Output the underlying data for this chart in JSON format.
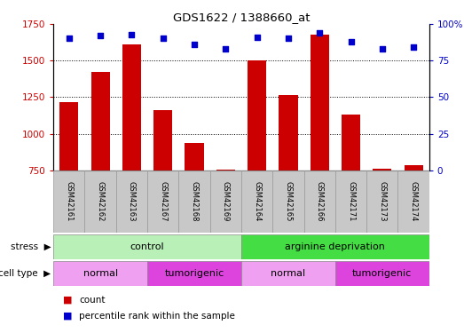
{
  "title": "GDS1622 / 1388660_at",
  "samples": [
    "GSM42161",
    "GSM42162",
    "GSM42163",
    "GSM42167",
    "GSM42168",
    "GSM42169",
    "GSM42164",
    "GSM42165",
    "GSM42166",
    "GSM42171",
    "GSM42173",
    "GSM42174"
  ],
  "counts": [
    1215,
    1420,
    1610,
    1165,
    940,
    755,
    1500,
    1265,
    1680,
    1130,
    760,
    785
  ],
  "percentile_ranks": [
    90,
    92,
    93,
    90,
    86,
    83,
    91,
    90,
    94,
    88,
    83,
    84
  ],
  "ylim_left": [
    750,
    1750
  ],
  "ylim_right": [
    0,
    100
  ],
  "yticks_left": [
    750,
    1000,
    1250,
    1500,
    1750
  ],
  "yticks_right": [
    0,
    25,
    50,
    75,
    100
  ],
  "bar_color": "#cc0000",
  "dot_color": "#0000cc",
  "stress_groups": [
    {
      "label": "control",
      "start": 0,
      "end": 6,
      "color": "#b8f0b8"
    },
    {
      "label": "arginine deprivation",
      "start": 6,
      "end": 12,
      "color": "#44dd44"
    }
  ],
  "cell_type_groups": [
    {
      "label": "normal",
      "start": 0,
      "end": 3,
      "color": "#f0a0f0"
    },
    {
      "label": "tumorigenic",
      "start": 3,
      "end": 6,
      "color": "#dd44dd"
    },
    {
      "label": "normal",
      "start": 6,
      "end": 9,
      "color": "#f0a0f0"
    },
    {
      "label": "tumorigenic",
      "start": 9,
      "end": 12,
      "color": "#dd44dd"
    }
  ],
  "legend_count_label": "count",
  "legend_pct_label": "percentile rank within the sample",
  "stress_label": "stress",
  "cell_type_label": "cell type",
  "background_color": "#ffffff",
  "tick_label_color_left": "#cc0000",
  "tick_label_color_right": "#0000cc",
  "sample_bg_color": "#c8c8c8",
  "sample_border_color": "#999999"
}
